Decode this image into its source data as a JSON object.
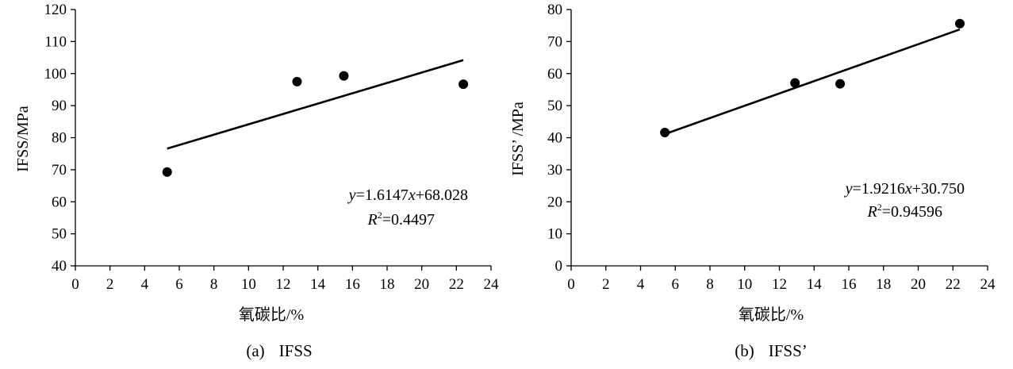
{
  "chart_data": [
    {
      "type": "scatter",
      "panel": "a",
      "caption_label": "(a)",
      "caption_name": "IFSS",
      "xlabel": "氧碳比/%",
      "ylabel": "IFSS/MPa",
      "xlim": [
        0,
        24
      ],
      "ylim": [
        40,
        120
      ],
      "xticks": [
        0,
        2,
        4,
        6,
        8,
        10,
        12,
        14,
        16,
        18,
        20,
        22,
        24
      ],
      "yticks": [
        40,
        50,
        60,
        70,
        80,
        90,
        100,
        110,
        120
      ],
      "points": [
        {
          "x": 5.3,
          "y": 69.3
        },
        {
          "x": 12.8,
          "y": 97.5
        },
        {
          "x": 15.5,
          "y": 99.3
        },
        {
          "x": 22.4,
          "y": 96.7
        }
      ],
      "trendline": {
        "slope": 1.6147,
        "intercept": 68.028,
        "x_range": [
          5.3,
          22.4
        ]
      },
      "equation": {
        "y": "y",
        "rest1": "=1.6147",
        "x": "x",
        "rest2": "+68.028"
      },
      "r2": {
        "R": "R",
        "sup": "2",
        "value": "=0.4497"
      },
      "grid": false
    },
    {
      "type": "scatter",
      "panel": "b",
      "caption_label": "(b)",
      "caption_name": "IFSS’",
      "xlabel": "氧碳比/%",
      "ylabel": "IFSS’ /MPa",
      "xlim": [
        0,
        24
      ],
      "ylim": [
        0,
        80
      ],
      "xticks": [
        0,
        2,
        4,
        6,
        8,
        10,
        12,
        14,
        16,
        18,
        20,
        22,
        24
      ],
      "yticks": [
        0,
        10,
        20,
        30,
        40,
        50,
        60,
        70,
        80
      ],
      "points": [
        {
          "x": 5.4,
          "y": 41.6
        },
        {
          "x": 12.9,
          "y": 57.1
        },
        {
          "x": 15.5,
          "y": 56.8
        },
        {
          "x": 22.4,
          "y": 75.6
        }
      ],
      "trendline": {
        "slope": 1.9216,
        "intercept": 30.75,
        "x_range": [
          5.3,
          22.4
        ]
      },
      "equation": {
        "y": "y",
        "rest1": "=1.9216",
        "x": "x",
        "rest2": "+30.750"
      },
      "r2": {
        "R": "R",
        "sup": "2",
        "value": "=0.94596"
      },
      "grid": false
    }
  ]
}
